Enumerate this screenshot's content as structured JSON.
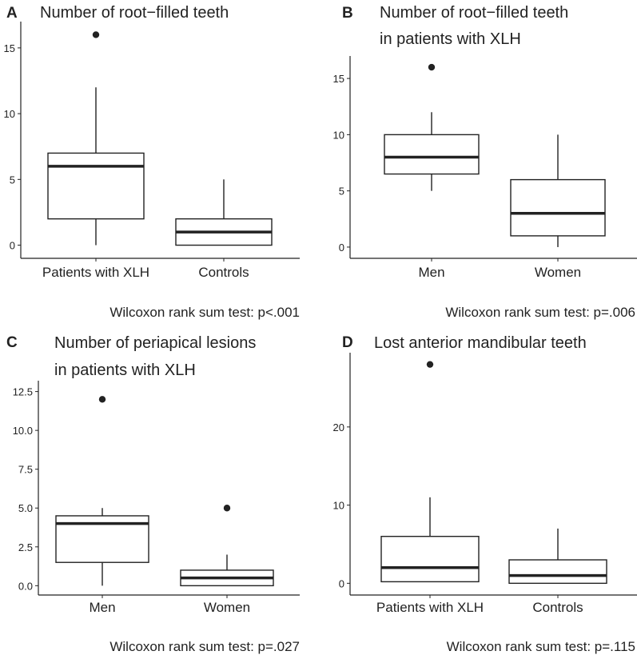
{
  "chart_data": [
    {
      "panel": "A",
      "type": "box",
      "title": [
        "Number of root−filled teeth"
      ],
      "categories": [
        "Patients with XLH",
        "Controls"
      ],
      "ylim": [
        -1,
        17
      ],
      "yticks": [
        0,
        5,
        10,
        15
      ],
      "ytick_labels": [
        "0",
        "5",
        "10",
        "15"
      ],
      "boxes": [
        {
          "min": 0,
          "q1": 2,
          "median": 6,
          "q3": 7,
          "max": 12,
          "outliers": [
            16
          ]
        },
        {
          "min": 0,
          "q1": 0,
          "median": 1,
          "q3": 2,
          "max": 5,
          "outliers": []
        }
      ],
      "footnote": "Wilcoxon rank sum test: p<.001"
    },
    {
      "panel": "B",
      "type": "box",
      "title": [
        "Number of root−filled teeth",
        "in patients with XLH"
      ],
      "categories": [
        "Men",
        "Women"
      ],
      "ylim": [
        -1,
        17
      ],
      "yticks": [
        0,
        5,
        10,
        15
      ],
      "ytick_labels": [
        "0",
        "5",
        "10",
        "15"
      ],
      "boxes": [
        {
          "min": 5,
          "q1": 6.5,
          "median": 8,
          "q3": 10,
          "max": 12,
          "outliers": [
            16
          ]
        },
        {
          "min": 0,
          "q1": 1,
          "median": 3,
          "q3": 6,
          "max": 10,
          "outliers": []
        }
      ],
      "footnote": "Wilcoxon rank sum test: p=.006"
    },
    {
      "panel": "C",
      "type": "box",
      "title": [
        "Number of periapical lesions",
        "in patients with XLH"
      ],
      "categories": [
        "Men",
        "Women"
      ],
      "ylim": [
        -0.6,
        13.2
      ],
      "yticks": [
        0,
        2.5,
        5,
        7.5,
        10,
        12.5
      ],
      "ytick_labels": [
        "0.0",
        "2.5",
        "5.0",
        "7.5",
        "10.0",
        "12.5"
      ],
      "boxes": [
        {
          "min": 0,
          "q1": 1.5,
          "median": 4,
          "q3": 4.5,
          "max": 5,
          "outliers": [
            12
          ]
        },
        {
          "min": 0,
          "q1": 0,
          "median": 0.5,
          "q3": 1,
          "max": 2,
          "outliers": [
            5
          ]
        }
      ],
      "footnote": "Wilcoxon rank sum test: p=.027"
    },
    {
      "panel": "D",
      "type": "box",
      "title": [
        "Lost anterior mandibular teeth"
      ],
      "categories": [
        "Patients with XLH",
        "Controls"
      ],
      "ylim": [
        -1.5,
        29.5
      ],
      "yticks": [
        0,
        10,
        20
      ],
      "ytick_labels": [
        "0",
        "10",
        "20"
      ],
      "boxes": [
        {
          "min": 0.2,
          "q1": 0.2,
          "median": 2,
          "q3": 6,
          "max": 11,
          "outliers": [
            28
          ]
        },
        {
          "min": 0,
          "q1": 0,
          "median": 1,
          "q3": 3,
          "max": 7,
          "outliers": []
        }
      ],
      "footnote": "Wilcoxon rank sum test: p=.115"
    }
  ]
}
